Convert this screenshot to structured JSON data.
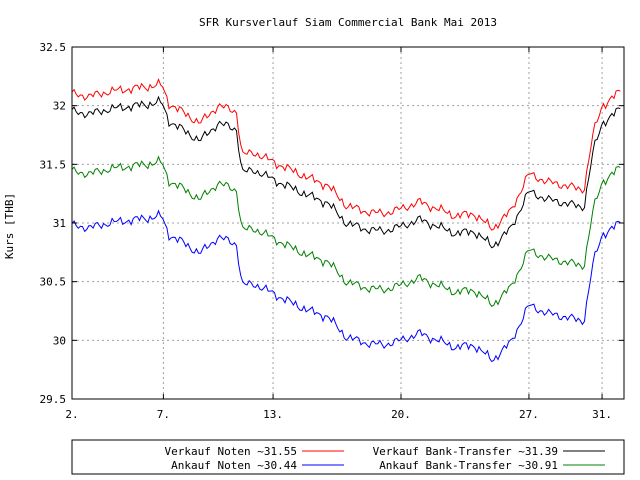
{
  "chart_data": {
    "type": "line",
    "title": "SFR Kursverlauf Siam Commercial Bank Mai 2013",
    "ylabel": "Kurs [THB]",
    "xlabel": "",
    "ylim": [
      29.5,
      32.5
    ],
    "xlim": [
      2,
      32.2
    ],
    "y_ticks": [
      "29.5",
      "30",
      "30.5",
      "31",
      "31.5",
      "32",
      "32.5"
    ],
    "x_ticks": [
      {
        "value": 2,
        "label": "2."
      },
      {
        "value": 7,
        "label": "7."
      },
      {
        "value": 13,
        "label": "13."
      },
      {
        "value": 20,
        "label": "20."
      },
      {
        "value": 27,
        "label": "27."
      },
      {
        "value": 31,
        "label": "31."
      }
    ],
    "grid": true,
    "legend_placement": "bottom",
    "series": [
      {
        "name": "Verkauf Noten ~31.55",
        "color": "#ff0000",
        "x": [
          2,
          3,
          4,
          5,
          6,
          6.9,
          7.3,
          8,
          9,
          10,
          11,
          11.3,
          12,
          13,
          14,
          15,
          16,
          17,
          18,
          19,
          20,
          21,
          22,
          23,
          24,
          25,
          26,
          27,
          28,
          29,
          30,
          30.5,
          31,
          32
        ],
        "y": [
          32.1,
          32.08,
          32.12,
          32.14,
          32.16,
          32.18,
          32.02,
          31.95,
          31.85,
          32.0,
          31.95,
          31.58,
          31.6,
          31.52,
          31.45,
          31.38,
          31.32,
          31.15,
          31.1,
          31.08,
          31.12,
          31.18,
          31.12,
          31.06,
          31.08,
          30.95,
          31.1,
          31.42,
          31.35,
          31.32,
          31.28,
          31.75,
          32.0,
          32.12
        ]
      },
      {
        "name": "Ankauf Noten ~30.44",
        "color": "#0000ff",
        "x": [
          2,
          3,
          4,
          5,
          6,
          6.9,
          7.3,
          8,
          9,
          10,
          11,
          11.3,
          12,
          13,
          14,
          15,
          16,
          17,
          18,
          19,
          20,
          21,
          22,
          23,
          24,
          25,
          26,
          27,
          28,
          29,
          30,
          30.5,
          31,
          32
        ],
        "y": [
          30.98,
          30.96,
          31.0,
          31.02,
          31.04,
          31.06,
          30.9,
          30.84,
          30.74,
          30.88,
          30.82,
          30.47,
          30.48,
          30.4,
          30.32,
          30.25,
          30.2,
          30.03,
          29.98,
          29.96,
          30.0,
          30.06,
          30.0,
          29.94,
          29.96,
          29.83,
          29.98,
          30.3,
          30.23,
          30.2,
          30.16,
          30.65,
          30.9,
          31.0
        ]
      },
      {
        "name": "Verkauf Bank-Transfer ~31.39",
        "color": "#000000",
        "x": [
          2,
          3,
          4,
          5,
          6,
          6.9,
          7.3,
          8,
          9,
          10,
          11,
          11.3,
          12,
          13,
          14,
          15,
          16,
          17,
          18,
          19,
          20,
          21,
          22,
          23,
          24,
          25,
          26,
          27,
          28,
          29,
          30,
          30.5,
          31,
          32
        ],
        "y": [
          31.95,
          31.93,
          31.97,
          31.99,
          32.01,
          32.03,
          31.87,
          31.8,
          31.7,
          31.85,
          31.8,
          31.43,
          31.45,
          31.37,
          31.3,
          31.23,
          31.17,
          31.0,
          30.95,
          30.93,
          30.97,
          31.03,
          30.97,
          30.91,
          30.93,
          30.8,
          30.95,
          31.27,
          31.2,
          31.17,
          31.13,
          31.6,
          31.85,
          31.97
        ]
      },
      {
        "name": "Ankauf Bank-Transfer ~30.91",
        "color": "#008000",
        "x": [
          2,
          3,
          4,
          5,
          6,
          6.9,
          7.3,
          8,
          9,
          10,
          11,
          11.3,
          12,
          13,
          14,
          15,
          16,
          17,
          18,
          19,
          20,
          21,
          22,
          23,
          24,
          25,
          26,
          27,
          28,
          29,
          30,
          30.5,
          31,
          32
        ],
        "y": [
          31.44,
          31.42,
          31.46,
          31.48,
          31.5,
          31.52,
          31.36,
          31.3,
          31.2,
          31.34,
          31.28,
          30.94,
          30.95,
          30.87,
          30.79,
          30.72,
          30.67,
          30.5,
          30.45,
          30.43,
          30.47,
          30.53,
          30.47,
          30.41,
          30.43,
          30.3,
          30.45,
          30.77,
          30.7,
          30.67,
          30.63,
          31.1,
          31.35,
          31.47
        ]
      }
    ]
  }
}
